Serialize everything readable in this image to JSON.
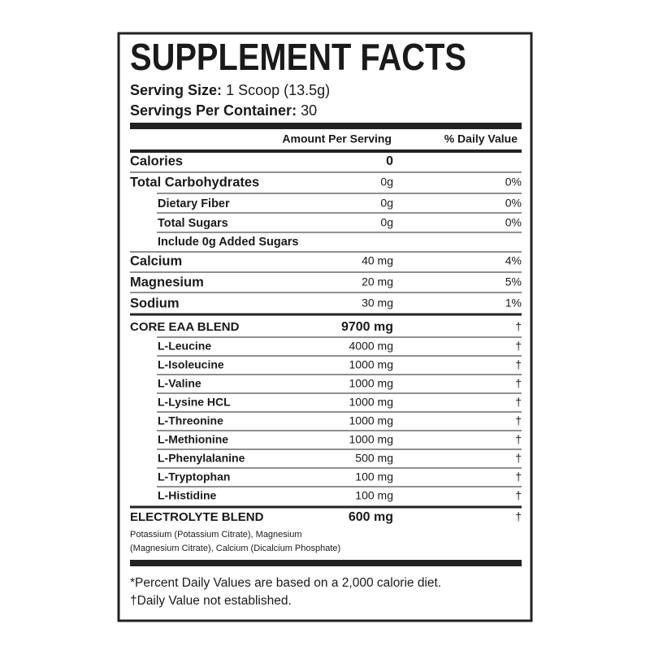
{
  "title": "SUPPLEMENT FACTS",
  "serving_size": {
    "label": "Serving Size:",
    "value": "1 Scoop (13.5g)"
  },
  "servings_per_container": {
    "label": "Servings Per Container:",
    "value": "30"
  },
  "header": {
    "amount": "Amount Per Serving",
    "dv": "% Daily Value"
  },
  "rows": [
    {
      "name": "Calories",
      "amount": "0"
    },
    {
      "name": "Total Carbohydrates",
      "amount": "0g",
      "dv": "0%"
    },
    {
      "name": "Dietary Fiber",
      "amount": "0g",
      "dv": "0%"
    },
    {
      "name": "Total Sugars",
      "amount": "0g",
      "dv": "0%"
    },
    {
      "name": "Include 0g Added Sugars"
    },
    {
      "name": "Calcium",
      "amount": "40 mg",
      "dv": "4%"
    },
    {
      "name": "Magnesium",
      "amount": "20 mg",
      "dv": "5%"
    },
    {
      "name": "Sodium",
      "amount": "30 mg",
      "dv": "1%"
    },
    {
      "name": "CORE EAA BLEND",
      "amount": "9700 mg",
      "dv": "†"
    },
    {
      "name": "L-Leucine",
      "amount": "4000 mg",
      "dv": "†"
    },
    {
      "name": "L-Isoleucine",
      "amount": "1000 mg",
      "dv": "†"
    },
    {
      "name": "L-Valine",
      "amount": "1000 mg",
      "dv": "†"
    },
    {
      "name": "L-Lysine HCL",
      "amount": "1000 mg",
      "dv": "†"
    },
    {
      "name": "L-Threonine",
      "amount": "1000 mg",
      "dv": "†"
    },
    {
      "name": "L-Methionine",
      "amount": "1000 mg",
      "dv": "†"
    },
    {
      "name": "L-Phenylalanine",
      "amount": "500 mg",
      "dv": "†"
    },
    {
      "name": "L-Tryptophan",
      "amount": "100 mg",
      "dv": "†"
    },
    {
      "name": "L-Histidine",
      "amount": "100 mg",
      "dv": "†"
    },
    {
      "name": "ELECTROLYTE BLEND",
      "amount": "600 mg",
      "dv": "†"
    }
  ],
  "electrolyte_note": [
    "Potassium (Potassium Citrate), Magnesium",
    "(Magnesium Citrate), Calcium (Dicalcium Phosphate)"
  ],
  "footnotes": [
    "*Percent Daily Values are based on a 2,000 calorie diet.",
    "†Daily Value not established."
  ]
}
